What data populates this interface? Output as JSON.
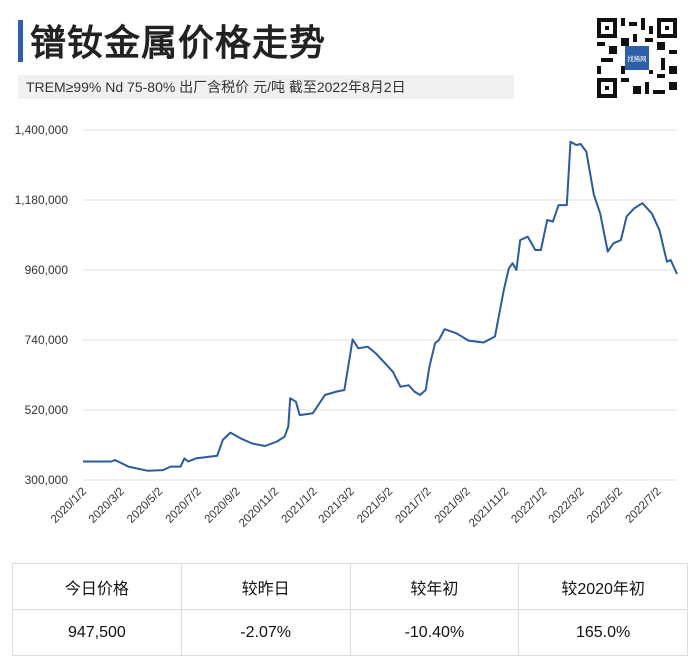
{
  "header": {
    "title": "镨钕金属价格走势",
    "subtitle": "TREM≥99% Nd 75-80%  出厂含税价 元/吨  截至2022年8月2日",
    "qr_logo_text": "找稀网"
  },
  "colors": {
    "accent": "#2f5fa8",
    "line": "#2b5aa0",
    "grid": "#e6e6e6"
  },
  "chart_data": {
    "type": "line",
    "title": "",
    "xlabel": "",
    "ylabel": "",
    "ylim": [
      300000,
      1400000
    ],
    "xlim": [
      "2020/01/02",
      "2022/08/02"
    ],
    "grid": "horizontal",
    "y_ticks": [
      "1,400,000",
      "1,180,000",
      "960,000",
      "740,000",
      "520,000",
      "300,000"
    ],
    "y_tick_values": [
      1400000,
      1180000,
      960000,
      740000,
      520000,
      300000
    ],
    "x_ticks": [
      "2020/1/2",
      "2020/3/2",
      "2020/5/2",
      "2020/7/2",
      "2020/9/2",
      "2020/11/2",
      "2021/1/2",
      "2021/3/2",
      "2021/5/2",
      "2021/7/2",
      "2021/9/2",
      "2021/11/2",
      "2022/1/2",
      "2022/3/2",
      "2022/5/2",
      "2022/7/2"
    ],
    "series": [
      {
        "x": [
          "2020/01/02",
          "2020/02/16",
          "2020/02/22",
          "2020/03/14",
          "2020/04/14",
          "2020/05/08",
          "2020/05/20",
          "2020/06/05",
          "2020/06/11",
          "2020/06/17",
          "2020/06/29",
          "2020/08/02",
          "2020/08/11",
          "2020/08/23",
          "2020/09/08",
          "2020/09/26",
          "2020/10/17",
          "2020/11/05",
          "2020/11/17",
          "2020/11/23",
          "2020/11/26",
          "2020/12/05",
          "2020/12/11",
          "2021/01/01",
          "2021/01/20",
          "2021/02/08",
          "2021/02/20",
          "2021/03/01",
          "2021/03/05",
          "2021/03/14",
          "2021/03/29",
          "2021/04/11",
          "2021/04/23",
          "2021/05/08",
          "2021/05/20",
          "2021/06/02",
          "2021/06/11",
          "2021/06/20",
          "2021/06/29",
          "2021/07/05",
          "2021/07/14",
          "2021/07/20",
          "2021/07/29",
          "2021/08/17",
          "2021/09/05",
          "2021/09/29",
          "2021/10/17",
          "2021/10/23",
          "2021/10/31",
          "2021/11/08",
          "2021/11/14",
          "2021/11/20",
          "2021/11/26",
          "2021/12/08",
          "2021/12/20",
          "2021/12/29",
          "2022/01/08",
          "2022/01/17",
          "2022/01/26",
          "2022/02/08",
          "2022/02/14",
          "2022/02/23",
          "2022/03/02",
          "2022/03/11",
          "2022/03/23",
          "2022/04/02",
          "2022/04/14",
          "2022/04/23",
          "2022/05/05",
          "2022/05/14",
          "2022/05/26",
          "2022/06/08",
          "2022/06/23",
          "2022/07/05",
          "2022/07/17",
          "2022/07/23",
          "2022/08/02"
        ],
        "y": [
          358000,
          358000,
          363000,
          342000,
          329000,
          331000,
          342000,
          342000,
          368000,
          358000,
          368000,
          376000,
          426000,
          449000,
          431000,
          415000,
          407000,
          421000,
          436000,
          468000,
          557000,
          546000,
          504000,
          510000,
          567000,
          578000,
          583000,
          693000,
          742000,
          714000,
          719000,
          698000,
          672000,
          640000,
          593000,
          598000,
          578000,
          567000,
          583000,
          656000,
          730000,
          740000,
          774000,
          761000,
          738000,
          732000,
          751000,
          813000,
          897000,
          965000,
          981000,
          960000,
          1054000,
          1065000,
          1023000,
          1023000,
          1117000,
          1112000,
          1164000,
          1164000,
          1363000,
          1353000,
          1356000,
          1332000,
          1196000,
          1138000,
          1018000,
          1044000,
          1054000,
          1128000,
          1154000,
          1170000,
          1138000,
          1086000,
          986000,
          991000,
          947500
        ]
      }
    ]
  },
  "summary": {
    "headers": [
      "今日价格",
      "较昨日",
      "较年初",
      "较2020年初"
    ],
    "values": [
      "947,500",
      "-2.07%",
      "-10.40%",
      "165.0%"
    ]
  }
}
